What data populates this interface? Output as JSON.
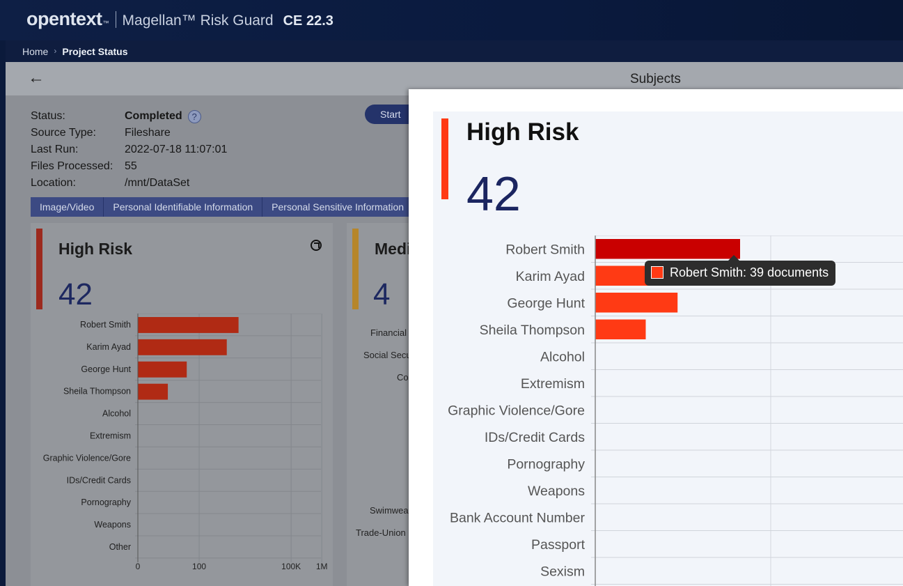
{
  "header": {
    "logo_text": "opentext",
    "logo_tm": "™",
    "product": "Magellan™ Risk Guard",
    "version": "CE 22.3"
  },
  "breadcrumb": {
    "home": "Home",
    "current": "Project Status"
  },
  "page": {
    "title": "Subjects"
  },
  "project": {
    "status_label": "Status:",
    "status": "Completed",
    "source_type_label": "Source Type:",
    "source_type": "Fileshare",
    "last_run_label": "Last Run:",
    "last_run": "2022-07-18 11:07:01",
    "files_processed_label": "Files Processed:",
    "files_processed": "55",
    "location_label": "Location:",
    "location": "/mnt/DataSet",
    "start_button": "Start"
  },
  "tabs": [
    {
      "label": "Image/Video"
    },
    {
      "label": "Personal Identifiable Information"
    },
    {
      "label": "Personal Sensitive Information"
    }
  ],
  "cards": [
    {
      "title": "High Risk",
      "count": "42",
      "accent": "#9c2a1e"
    },
    {
      "title": "Medium Risk",
      "count": "4",
      "accent": "#b6862b",
      "visible_labels": [
        "Financial",
        "Social Secu",
        "Co",
        "Swimwea",
        "Trade-Union"
      ]
    }
  ],
  "modal": {
    "title": "High Risk",
    "count": "42"
  },
  "tooltip": {
    "text": "Robert Smith: 39 documents",
    "color": "#ff3a14"
  },
  "chart_data": [
    {
      "type": "bar",
      "orientation": "horizontal",
      "title": "High Risk",
      "categories": [
        "Robert Smith",
        "Karim Ayad",
        "George Hunt",
        "Sheila Thompson",
        "Alcohol",
        "Extremism",
        "Graphic Violence/Gore",
        "IDs/Credit Cards",
        "Pornography",
        "Weapons",
        "Other"
      ],
      "values": [
        39,
        25,
        5,
        2,
        0,
        0,
        0,
        0,
        0,
        0,
        0
      ],
      "x_scale": "log",
      "x_ticks": [
        "0",
        "100",
        "100K",
        "1M"
      ],
      "grid": true,
      "bar_color": "#b02a14"
    },
    {
      "type": "bar",
      "orientation": "horizontal",
      "title": "High Risk",
      "categories": [
        "Robert Smith",
        "Karim Ayad",
        "George Hunt",
        "Sheila Thompson",
        "Alcohol",
        "Extremism",
        "Graphic Violence/Gore",
        "IDs/Credit Cards",
        "Pornography",
        "Weapons",
        "Bank Account Number",
        "Passport",
        "Sexism"
      ],
      "values": [
        39,
        25,
        5,
        2,
        0,
        0,
        0,
        0,
        0,
        0,
        0,
        0,
        0
      ],
      "x_scale": "log",
      "grid": true,
      "bar_color": "#ff3a14",
      "highlight_color": "#c90000"
    }
  ]
}
